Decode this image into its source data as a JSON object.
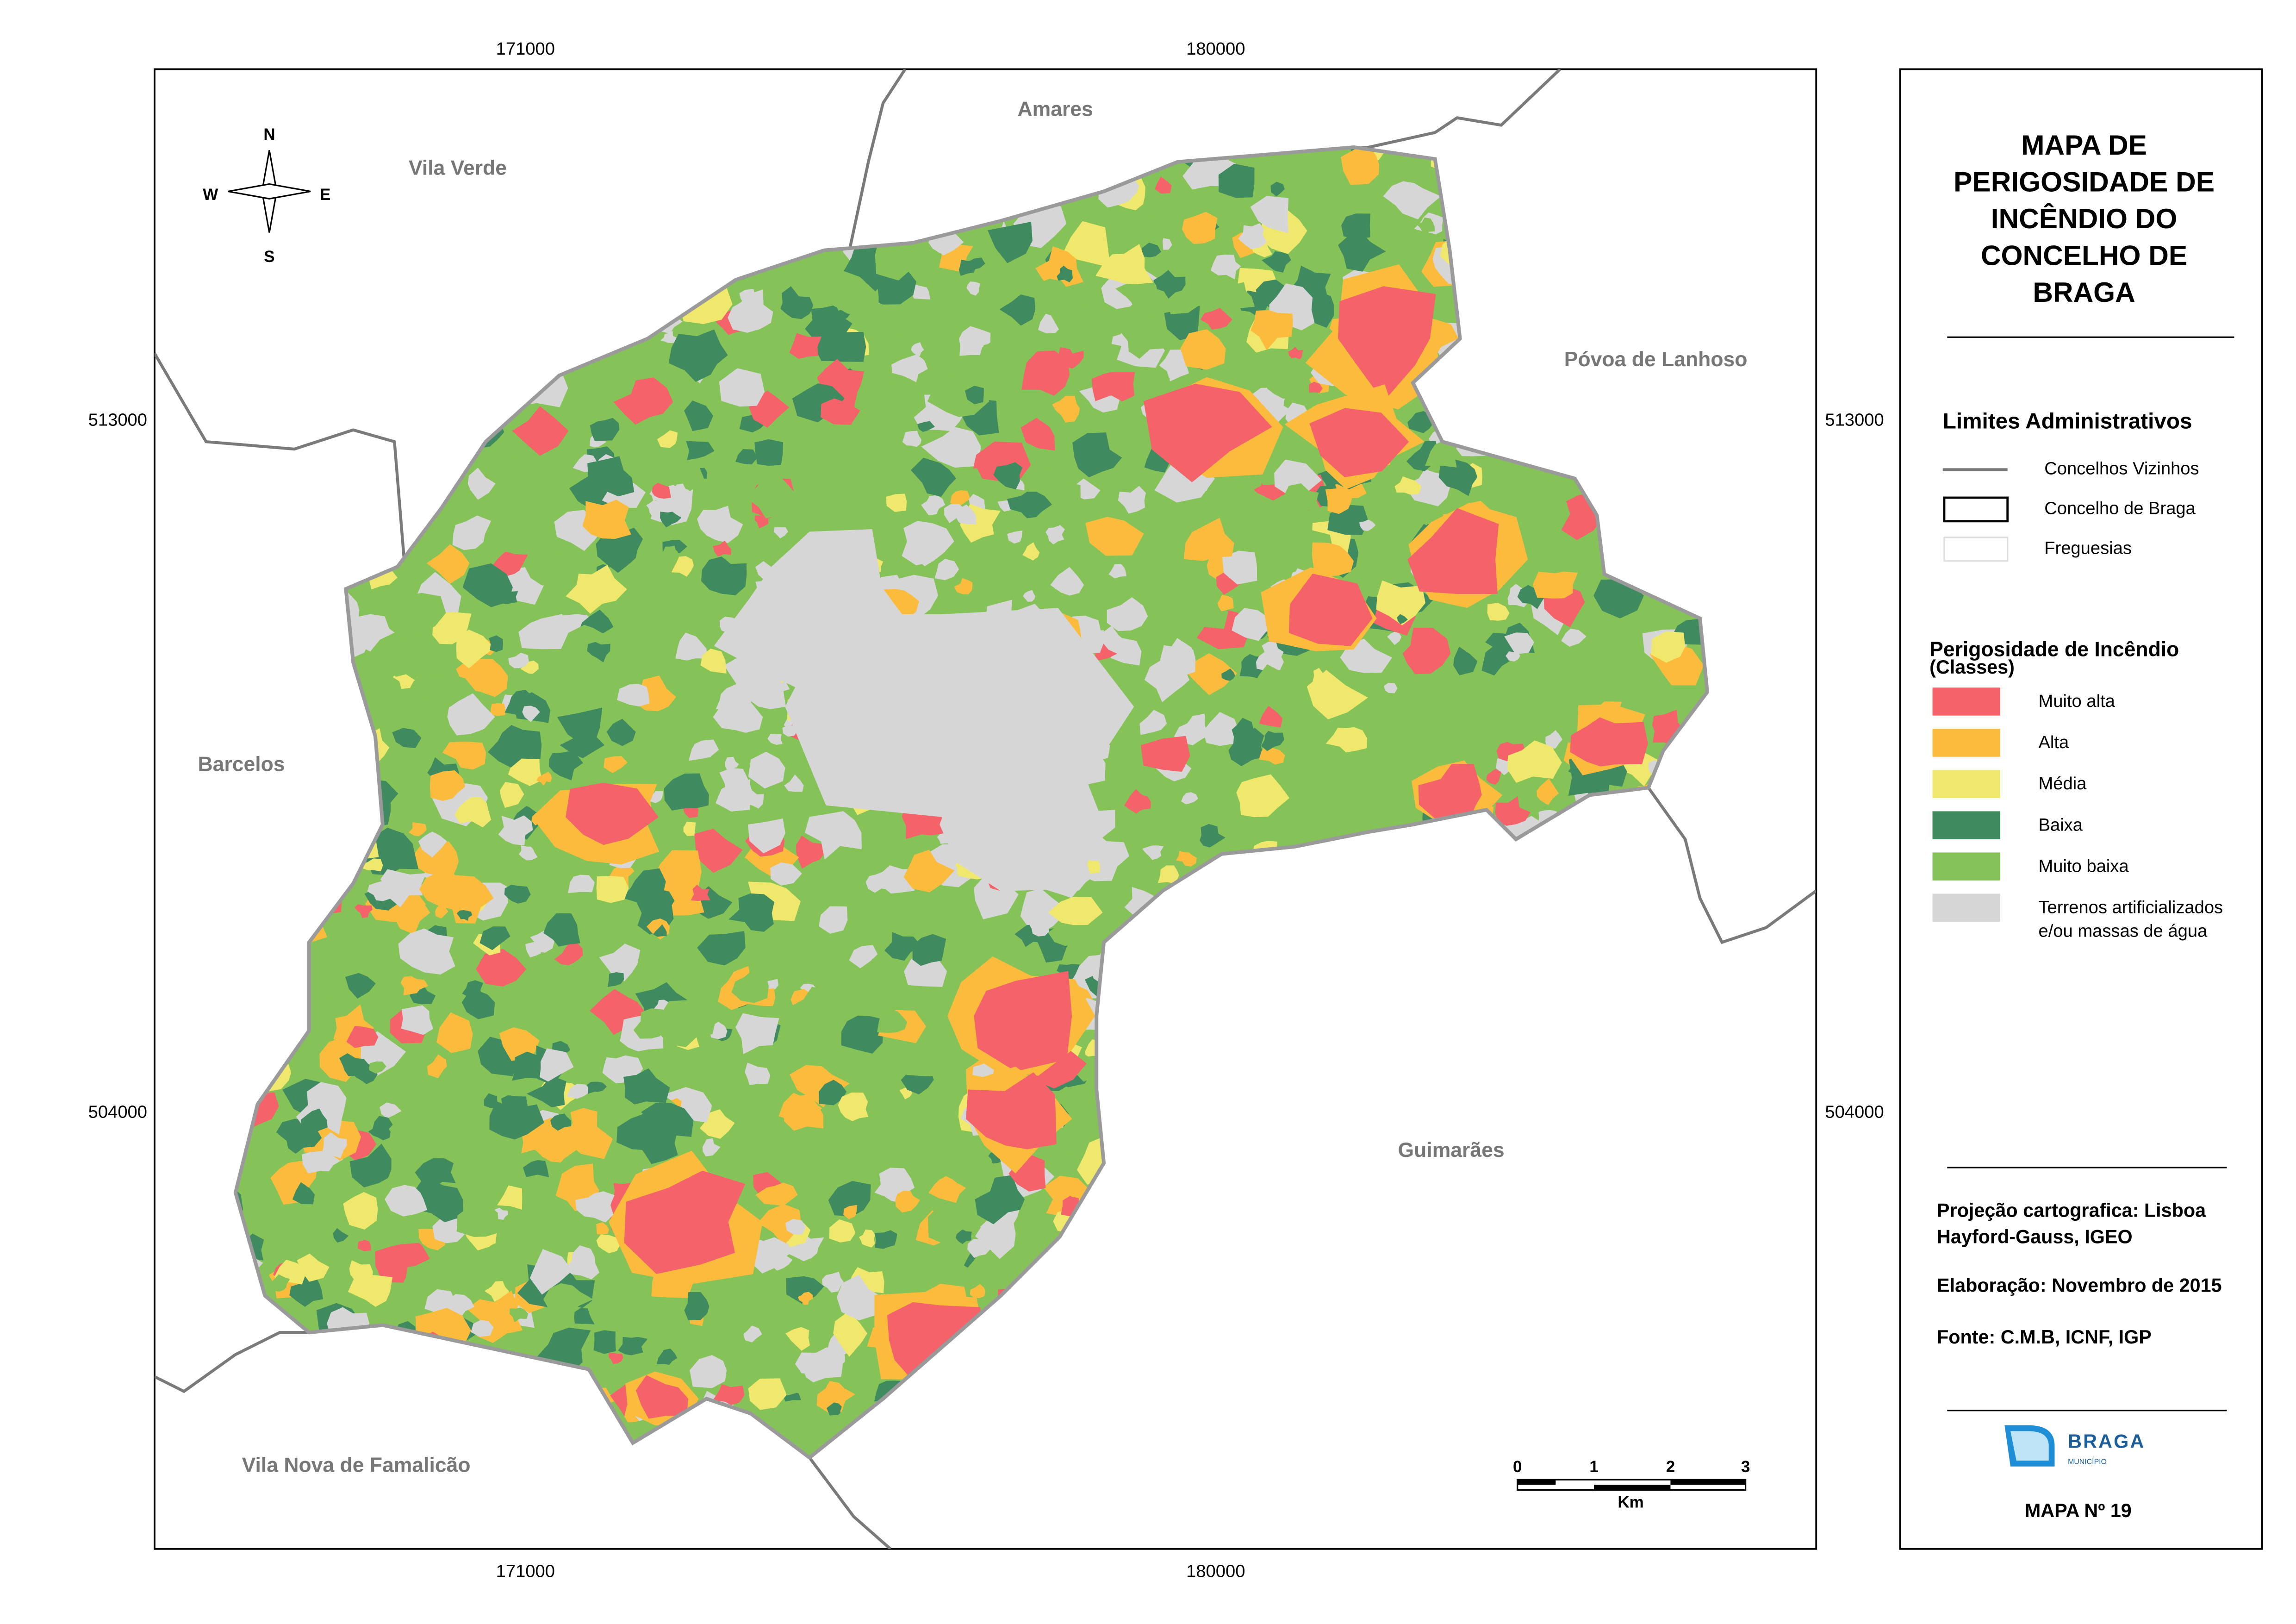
{
  "map": {
    "coordinates": {
      "top": [
        171000,
        180000
      ],
      "bottom": [
        171000,
        180000
      ],
      "left": [
        513000,
        504000
      ],
      "right": [
        513000,
        504000
      ]
    },
    "neighbours": [
      "Amares",
      "Vila Verde",
      "Póvoa de Lanhoso",
      "Barcelos",
      "Guimarães",
      "Vila Nova de Famalicão"
    ],
    "compass": {
      "n": "N",
      "s": "S",
      "e": "E",
      "w": "W"
    },
    "scale_bar": {
      "ticks": [
        0,
        1,
        2,
        3
      ],
      "unit": "Km"
    }
  },
  "legend": {
    "title_lines": [
      "MAPA DE",
      "PERIGOSIDADE DE",
      "INCÊNDIO DO",
      "CONCELHO DE",
      "BRAGA"
    ],
    "limits_title": "Limites Administrativos",
    "limits": [
      "Concelhos Vizinhos",
      "Concelho de Braga",
      "Freguesias"
    ],
    "hazard_title": "Perigosidade de Incêndio",
    "hazard_subtitle": "(Classes)",
    "classes": [
      {
        "label_lines": [
          "Muito alta"
        ],
        "color": "#f4626a"
      },
      {
        "label_lines": [
          "Alta"
        ],
        "color": "#fbbc3e"
      },
      {
        "label_lines": [
          "Média"
        ],
        "color": "#efe86c"
      },
      {
        "label_lines": [
          "Baixa"
        ],
        "color": "#3f8a5f"
      },
      {
        "label_lines": [
          "Muito baixa"
        ],
        "color": "#85c257"
      },
      {
        "label_lines": [
          "Terrenos artificializados",
          "e/ou massas de água"
        ],
        "color": "#d6d6d6"
      }
    ],
    "credits": [
      "Projeção cartografica: Lisboa",
      "Hayford-Gauss, IGEO",
      "Elaboração: Novembro de 2015",
      "Fonte: C.M.B, ICNF, IGP"
    ],
    "logo": {
      "name": "BRAGA",
      "sub": "MUNICÍPIO"
    },
    "map_number": "MAPA Nº 19"
  }
}
